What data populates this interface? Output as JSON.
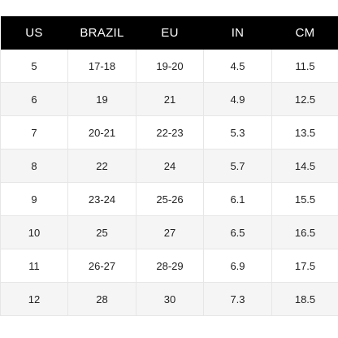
{
  "table": {
    "headers": [
      "US",
      "BRAZIL",
      "EU",
      "IN",
      "CM"
    ],
    "rows": [
      [
        "5",
        "17-18",
        "19-20",
        "4.5",
        "11.5"
      ],
      [
        "6",
        "19",
        "21",
        "4.9",
        "12.5"
      ],
      [
        "7",
        "20-21",
        "22-23",
        "5.3",
        "13.5"
      ],
      [
        "8",
        "22",
        "24",
        "5.7",
        "14.5"
      ],
      [
        "9",
        "23-24",
        "25-26",
        "6.1",
        "15.5"
      ],
      [
        "10",
        "25",
        "27",
        "6.5",
        "16.5"
      ],
      [
        "11",
        "26-27",
        "28-29",
        "6.9",
        "17.5"
      ],
      [
        "12",
        "28",
        "30",
        "7.3",
        "18.5"
      ]
    ]
  },
  "colors": {
    "header_bg": "#000000",
    "header_text": "#ffffff",
    "stripe": "#f5f5f5",
    "border": "#e6e6e6"
  }
}
